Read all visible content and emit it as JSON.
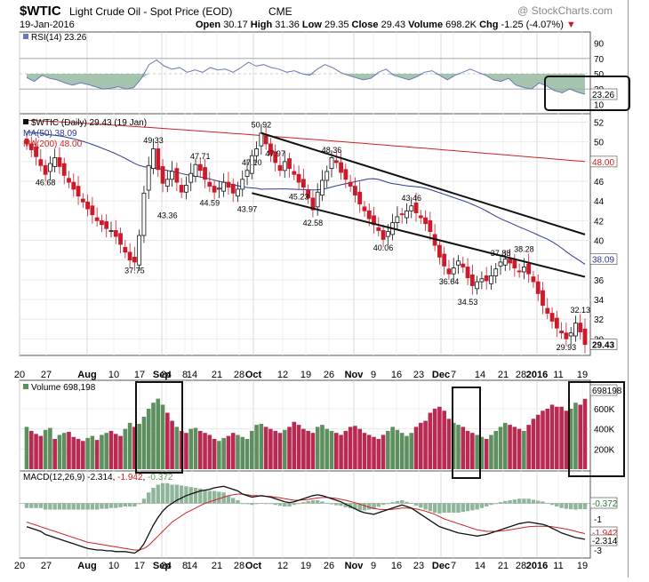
{
  "header": {
    "symbol": "$WTIC",
    "name": "Light Crude Oil - Spot Price (EOD)",
    "exchange": "CME",
    "watermark": "@ StockCharts.com",
    "date": "19-Jan-2016",
    "open_label": "Open",
    "open": "30.17",
    "high_label": "High",
    "high": "31.36",
    "low_label": "Low",
    "low": "29.35",
    "close_label": "Close",
    "close": "29.43",
    "volume_label": "Volume",
    "volume": "698.2K",
    "chg_label": "Chg",
    "chg": "-1.25 (-4.07%)",
    "chg_arrow": "▼"
  },
  "colors": {
    "up": "#5e9a5e",
    "down": "#cc1a2a",
    "ma50": "#2b3a93",
    "ma200": "#cc2222",
    "rsi": "#6a78b8",
    "vol_up": "#5e8f5e",
    "vol_down": "#b82a52",
    "macd_hist": "#8fb69a"
  },
  "chart_data": [
    {
      "type": "line",
      "title": "RSI(14) 23.26",
      "legend": "RSI(14) 23.26",
      "y_ticks": [
        10,
        30,
        50,
        70,
        90
      ],
      "ylim": [
        0,
        100
      ],
      "levels": [
        30,
        70
      ],
      "last_value": 23.26,
      "last_label": "23.26",
      "values": [
        45,
        40,
        48,
        44,
        42,
        38,
        35,
        38,
        36,
        33,
        30,
        31,
        33,
        30,
        32,
        44,
        62,
        68,
        60,
        56,
        58,
        52,
        55,
        52,
        58,
        55,
        56,
        52,
        58,
        65,
        60,
        62,
        58,
        56,
        52,
        54,
        50,
        48,
        56,
        62,
        58,
        52,
        48,
        45,
        42,
        44,
        52,
        56,
        48,
        45,
        42,
        46,
        52,
        54,
        48,
        42,
        48,
        52,
        56,
        52,
        48,
        42,
        40,
        44,
        35,
        32,
        30,
        38,
        34,
        28,
        25,
        30,
        26,
        23.26
      ]
    },
    {
      "type": "candlestick",
      "title": "$WTIC (Daily) 29.43 (19 Jan)",
      "legend": [
        {
          "name": "$WTIC (Daily) 29.43 (19 Jan)",
          "color": "#111111"
        },
        {
          "name": "MA(50) 38.09",
          "color": "#2b3a93"
        },
        {
          "name": "MA(200) 48.00",
          "color": "#cc2222"
        }
      ],
      "y_ticks": [
        30,
        32,
        34,
        36,
        38,
        40,
        42,
        44,
        46,
        48,
        50,
        52
      ],
      "ylim": [
        28.5,
        52.5
      ],
      "closes": [
        49.8,
        49.2,
        48.5,
        47.6,
        46.7,
        47.8,
        48.4,
        47.5,
        46.6,
        45.9,
        45.2,
        44.5,
        43.9,
        43.2,
        42.6,
        42.0,
        41.6,
        41.2,
        41.0,
        40.4,
        39.6,
        38.8,
        38.0,
        37.8,
        40.5,
        44.8,
        47.6,
        49.3,
        47.2,
        45.8,
        46.2,
        47.0,
        45.9,
        44.9,
        45.6,
        46.8,
        47.7,
        47.1,
        46.2,
        45.5,
        44.9,
        45.3,
        45.9,
        45.4,
        44.8,
        45.2,
        46.2,
        47.1,
        48.6,
        49.3,
        50.9,
        49.8,
        48.7,
        47.9,
        47.1,
        48.0,
        47.3,
        46.7,
        45.9,
        45.4,
        44.3,
        43.1,
        44.9,
        46.1,
        47.0,
        48.4,
        47.9,
        46.9,
        46.2,
        45.5,
        44.6,
        43.7,
        43.0,
        42.2,
        41.6,
        41.0,
        40.1,
        40.9,
        41.8,
        42.4,
        42.6,
        43.0,
        43.5,
        42.8,
        42.3,
        41.7,
        40.9,
        39.5,
        38.3,
        37.4,
        36.6,
        37.2,
        37.9,
        37.3,
        36.2,
        35.4,
        35.8,
        36.1,
        35.9,
        36.4,
        37.1,
        37.8,
        38.1,
        37.7,
        37.2,
        36.8,
        37.3,
        36.6,
        35.8,
        34.6,
        33.4,
        32.6,
        31.8,
        31.1,
        30.6,
        30.0,
        30.6,
        31.6,
        30.7,
        29.43
      ],
      "last_value": 29.43,
      "last_label": "29.43",
      "ma50_last": 38.09,
      "ma50_label": "38.09",
      "ma200_last": 48.0,
      "ma200_label": "48.00",
      "annotations": [
        "50.92",
        "49.33",
        "48.36",
        "47.97",
        "47.71",
        "47.10",
        "46.68",
        "45.23",
        "44.59",
        "43.97",
        "43.46",
        "43.36",
        "42.58",
        "40.06",
        "38.28",
        "37.88",
        "37.75",
        "36.64",
        "34.53",
        "32.13",
        "29.93"
      ]
    },
    {
      "type": "bar",
      "title": "Volume 698,198",
      "legend": "Volume 698,198",
      "y_ticks": [
        200000,
        400000,
        600000
      ],
      "y_tick_labels": [
        "200K",
        "400K",
        "600K"
      ],
      "ylim": [
        0,
        750000
      ],
      "last_value": 698198,
      "last_label": "698198",
      "values": [
        420000,
        380000,
        350000,
        330000,
        390000,
        410000,
        300000,
        340000,
        360000,
        370000,
        320000,
        300000,
        280000,
        310000,
        330000,
        290000,
        340000,
        360000,
        380000,
        350000,
        330000,
        400000,
        460000,
        420000,
        450000,
        520000,
        600000,
        660000,
        700000,
        640000,
        560000,
        480000,
        420000,
        380000,
        360000,
        400000,
        410000,
        380000,
        360000,
        340000,
        300000,
        280000,
        310000,
        330000,
        360000,
        340000,
        320000,
        300000,
        380000,
        440000,
        450000,
        420000,
        400000,
        380000,
        360000,
        390000,
        420000,
        470000,
        440000,
        400000,
        380000,
        360000,
        420000,
        440000,
        400000,
        380000,
        360000,
        340000,
        380000,
        420000,
        430000,
        400000,
        360000,
        340000,
        320000,
        300000,
        340000,
        380000,
        420000,
        390000,
        360000,
        330000,
        360000,
        420000,
        460000,
        480000,
        560000,
        600000,
        620000,
        580000,
        500000,
        460000,
        440000,
        420000,
        380000,
        360000,
        340000,
        320000,
        300000,
        340000,
        380000,
        420000,
        460000,
        440000,
        420000,
        400000,
        380000,
        440000,
        500000,
        540000,
        580000,
        600000,
        640000,
        620000,
        620000,
        580000,
        600000,
        660000,
        640000,
        698198
      ],
      "up": [
        true,
        false,
        false,
        false,
        true,
        true,
        false,
        true,
        true,
        false,
        false,
        false,
        false,
        true,
        true,
        false,
        true,
        true,
        false,
        false,
        false,
        true,
        true,
        false,
        true,
        true,
        true,
        true,
        true,
        true,
        false,
        false,
        true,
        false,
        false,
        true,
        true,
        false,
        false,
        false,
        false,
        true,
        true,
        false,
        false,
        true,
        true,
        true,
        true,
        true,
        true,
        false,
        false,
        false,
        false,
        true,
        false,
        false,
        false,
        false,
        false,
        false,
        true,
        true,
        true,
        true,
        false,
        false,
        false,
        false,
        false,
        false,
        false,
        false,
        false,
        false,
        false,
        true,
        true,
        true,
        true,
        true,
        true,
        false,
        false,
        false,
        false,
        false,
        false,
        false,
        false,
        true,
        true,
        false,
        false,
        false,
        true,
        true,
        false,
        true,
        true,
        true,
        true,
        false,
        false,
        false,
        true,
        false,
        false,
        false,
        false,
        false,
        false,
        false,
        false,
        false,
        true,
        true,
        false,
        false
      ]
    },
    {
      "type": "line",
      "title": "MACD(12,26,9) -2.314, -1.942, -0.372",
      "legend_prefix": "MACD(12,26,9) -2.314, ",
      "legend_signal": "-1.942",
      "legend_sep": ", ",
      "legend_hist": "-0.372",
      "y_ticks": [
        -3,
        -2,
        -1,
        0
      ],
      "ylim": [
        -3.4,
        1.4
      ],
      "last_hist_label": "-0.372",
      "last_signal_label": "-1.942",
      "last_macd_label": "-2.314",
      "macd": [
        -1.5,
        -1.6,
        -1.7,
        -1.8,
        -2.0,
        -2.1,
        -2.2,
        -2.3,
        -2.4,
        -2.5,
        -2.6,
        -2.7,
        -2.8,
        -2.9,
        -2.95,
        -3.0,
        -3.0,
        -3.05,
        -3.05,
        -3.1,
        -3.1,
        -3.1,
        -3.15,
        -3.2,
        -3.0,
        -2.6,
        -2.0,
        -1.4,
        -0.9,
        -0.5,
        -0.2,
        0.0,
        0.2,
        0.35,
        0.5,
        0.6,
        0.7,
        0.8,
        0.85,
        0.9,
        1.0,
        1.05,
        1.1,
        1.0,
        0.9,
        0.8,
        0.6,
        0.5,
        0.4,
        0.45,
        0.5,
        0.45,
        0.4,
        0.3,
        0.2,
        0.1,
        0.05,
        0.1,
        0.2,
        0.3,
        0.4,
        0.5,
        0.55,
        0.5,
        0.4,
        0.3,
        0.2,
        0.1,
        -0.05,
        -0.2,
        -0.35,
        -0.5,
        -0.6,
        -0.65,
        -0.7,
        -0.6,
        -0.5,
        -0.4,
        -0.3,
        -0.2,
        -0.1,
        -0.2,
        -0.3,
        -0.5,
        -0.7,
        -0.9,
        -1.1,
        -1.3,
        -1.5,
        -1.6,
        -1.7,
        -1.8,
        -1.9,
        -1.95,
        -2.0,
        -2.05,
        -2.1,
        -2.05,
        -2.0,
        -1.9,
        -1.8,
        -1.7,
        -1.6,
        -1.5,
        -1.4,
        -1.3,
        -1.25,
        -1.2,
        -1.25,
        -1.3,
        -1.35,
        -1.45,
        -1.6,
        -1.75,
        -1.9,
        -2.0,
        -2.1,
        -2.2,
        -2.25,
        -2.314
      ],
      "signal": [
        -1.2,
        -1.3,
        -1.4,
        -1.5,
        -1.6,
        -1.7,
        -1.8,
        -1.9,
        -2.0,
        -2.1,
        -2.2,
        -2.3,
        -2.4,
        -2.5,
        -2.55,
        -2.6,
        -2.65,
        -2.7,
        -2.75,
        -2.8,
        -2.85,
        -2.9,
        -2.95,
        -3.0,
        -3.0,
        -2.9,
        -2.7,
        -2.4,
        -2.1,
        -1.8,
        -1.5,
        -1.2,
        -1.0,
        -0.8,
        -0.6,
        -0.45,
        -0.3,
        -0.15,
        0.0,
        0.1,
        0.2,
        0.3,
        0.4,
        0.5,
        0.55,
        0.6,
        0.6,
        0.55,
        0.5,
        0.5,
        0.48,
        0.46,
        0.44,
        0.4,
        0.36,
        0.3,
        0.25,
        0.2,
        0.2,
        0.22,
        0.25,
        0.3,
        0.35,
        0.38,
        0.38,
        0.36,
        0.32,
        0.26,
        0.2,
        0.12,
        0.04,
        -0.05,
        -0.15,
        -0.25,
        -0.32,
        -0.38,
        -0.4,
        -0.4,
        -0.38,
        -0.35,
        -0.3,
        -0.3,
        -0.32,
        -0.36,
        -0.42,
        -0.5,
        -0.6,
        -0.7,
        -0.85,
        -1.0,
        -1.1,
        -1.2,
        -1.3,
        -1.4,
        -1.5,
        -1.6,
        -1.7,
        -1.75,
        -1.8,
        -1.8,
        -1.8,
        -1.78,
        -1.75,
        -1.7,
        -1.65,
        -1.6,
        -1.55,
        -1.5,
        -1.48,
        -1.47,
        -1.47,
        -1.48,
        -1.5,
        -1.55,
        -1.6,
        -1.65,
        -1.72,
        -1.8,
        -1.88,
        -1.942
      ]
    }
  ],
  "x_axis": {
    "labels": [
      "20",
      "27",
      "Aug",
      "10",
      "17",
      "24",
      "Sep",
      "8",
      "14",
      "21",
      "28",
      "Oct",
      "12",
      "19",
      "26",
      "Nov",
      "9",
      "16",
      "23",
      "Dec",
      "7",
      "14",
      "21",
      "28",
      "2016",
      "11",
      "19"
    ],
    "bold": [
      "Aug",
      "Sep",
      "Oct",
      "Nov",
      "Dec",
      "2016"
    ],
    "positions": [
      22,
      52,
      98,
      128,
      157,
      187,
      182,
      208,
      216,
      244,
      269,
      285,
      318,
      344,
      370,
      398,
      420,
      446,
      471,
      496,
      510,
      540,
      566,
      586,
      604,
      628,
      655
    ]
  }
}
